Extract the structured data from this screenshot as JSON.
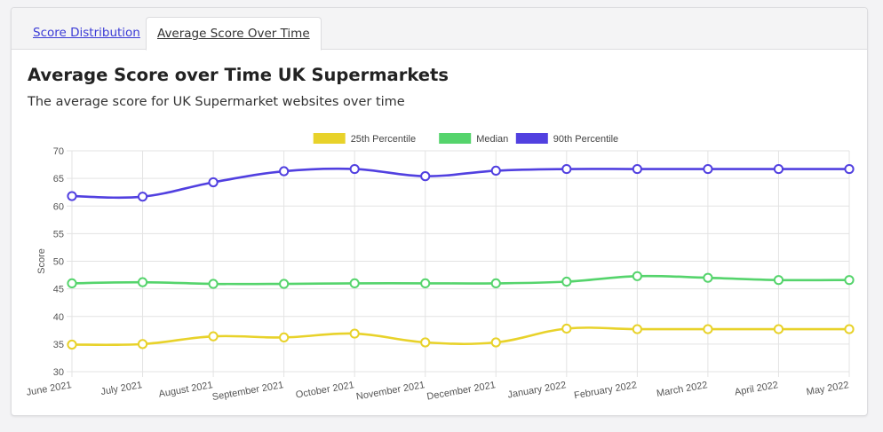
{
  "tabs": [
    {
      "label": "Score Distribution",
      "active": false
    },
    {
      "label": "Average Score Over Time",
      "active": true
    }
  ],
  "heading": "Average Score over Time UK Supermarkets",
  "subheading": "The average score for UK Supermarket websites over time",
  "chart_data": {
    "type": "line",
    "title": "",
    "xlabel": "",
    "ylabel": "Score",
    "ylim": [
      30,
      70
    ],
    "yticks": [
      30,
      35,
      40,
      45,
      50,
      55,
      60,
      65,
      70
    ],
    "grid": true,
    "legend_position": "top",
    "categories": [
      "June 2021",
      "July 2021",
      "August 2021",
      "September 2021",
      "October 2021",
      "November 2021",
      "December 2021",
      "January 2022",
      "February 2022",
      "March 2022",
      "April 2022",
      "May 2022"
    ],
    "series": [
      {
        "name": "25th Percentile",
        "color": "#e8d22a",
        "values": [
          34.9,
          35.0,
          36.4,
          36.2,
          36.9,
          35.3,
          35.3,
          37.8,
          37.7,
          37.7,
          37.7,
          37.7
        ]
      },
      {
        "name": "Median",
        "color": "#55d46c",
        "values": [
          46.0,
          46.2,
          45.9,
          45.9,
          46.0,
          46.0,
          46.0,
          46.3,
          47.3,
          47.0,
          46.6,
          46.6
        ]
      },
      {
        "name": "90th Percentile",
        "color": "#5140e0",
        "values": [
          61.8,
          61.7,
          64.3,
          66.3,
          66.7,
          65.4,
          66.4,
          66.7,
          66.7,
          66.7,
          66.7,
          66.7
        ]
      }
    ]
  }
}
